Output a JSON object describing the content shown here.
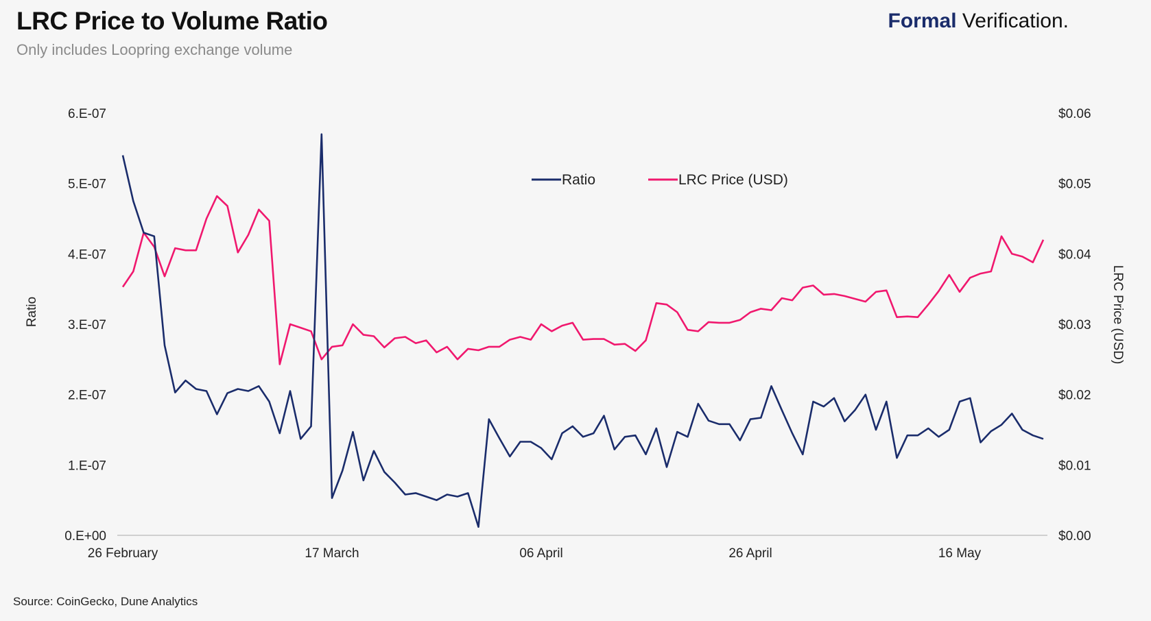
{
  "header": {
    "title": "LRC Price to Volume Ratio",
    "subtitle": "Only includes Loopring exchange volume",
    "brand_bold": "Formal",
    "brand_rest": "Verification."
  },
  "footer": {
    "source": "Source: CoinGecko, Dune Analytics"
  },
  "colors": {
    "ratio": "#1a2c6b",
    "price": "#f0186e",
    "axis": "#cfcfcf",
    "text": "#222222"
  },
  "chart_data": {
    "type": "line",
    "title": "LRC Price to Volume Ratio",
    "subtitle": "Only includes Loopring exchange volume",
    "x_ticks": [
      "26 February",
      "17 March",
      "06 April",
      "26 April",
      "16 May"
    ],
    "y_left": {
      "label": "Ratio",
      "ticks": [
        "0.E+00",
        "1.E-07",
        "2.E-07",
        "3.E-07",
        "4.E-07",
        "5.E-07",
        "6.E-07"
      ],
      "range": [
        0,
        6e-07
      ]
    },
    "y_right": {
      "label": "LRC Price (USD)",
      "ticks": [
        "$0.00",
        "$0.01",
        "$0.02",
        "$0.03",
        "$0.04",
        "$0.05",
        "$0.06"
      ],
      "range": [
        0,
        0.06
      ]
    },
    "legend_position": "top-center",
    "grid": false,
    "series": [
      {
        "name": "Ratio",
        "axis": "left",
        "values": [
          5.4e-07,
          4.75e-07,
          4.3e-07,
          4.25e-07,
          2.7e-07,
          2.03e-07,
          2.2e-07,
          2.08e-07,
          2.05e-07,
          1.72e-07,
          2.02e-07,
          2.08e-07,
          2.05e-07,
          2.12e-07,
          1.9e-07,
          1.45e-07,
          2.05e-07,
          1.37e-07,
          1.55e-07,
          5.7e-07,
          5.3e-08,
          9.2e-08,
          1.47e-07,
          7.8e-08,
          1.2e-07,
          9e-08,
          7.5e-08,
          5.8e-08,
          6e-08,
          5.5e-08,
          5e-08,
          5.8e-08,
          5.5e-08,
          6e-08,
          1.2e-08,
          1.65e-07,
          1.38e-07,
          1.12e-07,
          1.33e-07,
          1.33e-07,
          1.24e-07,
          1.08e-07,
          1.45e-07,
          1.55e-07,
          1.4e-07,
          1.45e-07,
          1.7e-07,
          1.22e-07,
          1.4e-07,
          1.42e-07,
          1.15e-07,
          1.52e-07,
          9.7e-08,
          1.47e-07,
          1.4e-07,
          1.87e-07,
          1.63e-07,
          1.58e-07,
          1.58e-07,
          1.35e-07,
          1.65e-07,
          1.67e-07,
          2.12e-07,
          1.78e-07,
          1.45e-07,
          1.15e-07,
          1.9e-07,
          1.83e-07,
          1.95e-07,
          1.62e-07,
          1.78e-07,
          2e-07,
          1.5e-07,
          1.9e-07,
          1.1e-07,
          1.42e-07,
          1.42e-07,
          1.52e-07,
          1.4e-07,
          1.5e-07,
          1.9e-07,
          1.95e-07,
          1.32e-07,
          1.48e-07,
          1.57e-07,
          1.73e-07,
          1.5e-07,
          1.42e-07,
          1.37e-07
        ]
      },
      {
        "name": "LRC Price (USD)",
        "axis": "right",
        "values": [
          0.0353,
          0.0375,
          0.043,
          0.041,
          0.0368,
          0.0408,
          0.0405,
          0.0405,
          0.045,
          0.0482,
          0.0468,
          0.0402,
          0.0427,
          0.0463,
          0.0447,
          0.0243,
          0.03,
          0.0295,
          0.029,
          0.025,
          0.0268,
          0.027,
          0.03,
          0.0285,
          0.0283,
          0.0267,
          0.028,
          0.0282,
          0.0273,
          0.0277,
          0.026,
          0.0268,
          0.025,
          0.0265,
          0.0263,
          0.0268,
          0.0268,
          0.0278,
          0.0282,
          0.0278,
          0.03,
          0.029,
          0.0298,
          0.0302,
          0.0278,
          0.0279,
          0.0279,
          0.0271,
          0.0272,
          0.0262,
          0.0277,
          0.033,
          0.0328,
          0.0317,
          0.0292,
          0.029,
          0.0303,
          0.0302,
          0.0302,
          0.0306,
          0.0317,
          0.0322,
          0.032,
          0.0337,
          0.0334,
          0.0352,
          0.0355,
          0.0342,
          0.0343,
          0.034,
          0.0336,
          0.0332,
          0.0346,
          0.0348,
          0.031,
          0.0311,
          0.031,
          0.0328,
          0.0347,
          0.037,
          0.0346,
          0.0366,
          0.0372,
          0.0375,
          0.0425,
          0.04,
          0.0396,
          0.0388,
          0.042
        ]
      }
    ]
  }
}
